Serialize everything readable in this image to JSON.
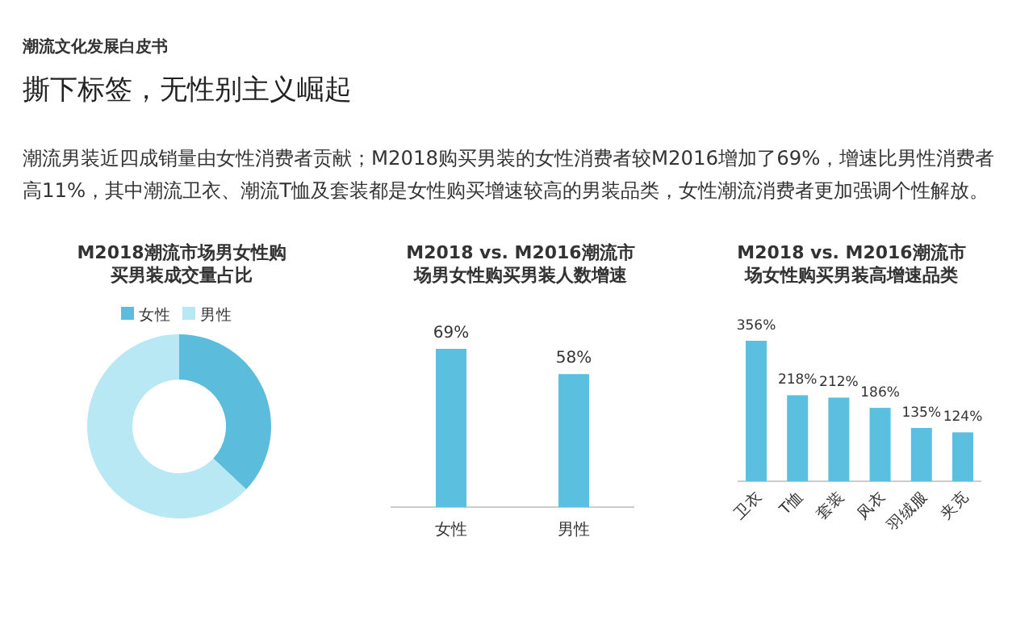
{
  "chart_data": [
    {
      "type": "other",
      "annotations": [
        "潮流文化发展白皮书"
      ],
      "title": "撕下标签，无性别主义崛起",
      "subtitle": "潮流男装近四成销量由女性消费者贡献；M2018购买男装的女性消费者较M2016增加了69%，增速比男性消费者高11%，其中潮流卫衣、潮流T恤及套装都是女性购买增速较高的男装品类，女性潮流消费者更加强调个性解放。"
    },
    {
      "type": "donut",
      "title": "M2018潮流市场男女性购买男装成交量占比",
      "categories": [
        "女性",
        "男性"
      ],
      "values": [
        37,
        63
      ],
      "colors": [
        "#5bbcdc",
        "#b8e8f4"
      ],
      "legend": "top"
    },
    {
      "type": "bar",
      "title": "M2018 vs. M2016潮流市场男女性购买男装人数增速",
      "categories": [
        "女性",
        "男性"
      ],
      "values": [
        69,
        58
      ],
      "value_labels": [
        "69%",
        "58%"
      ],
      "color": "#5bc0e0"
    },
    {
      "type": "bar",
      "title": "M2018 vs. M2016潮流市场女性购买男装高增速品类",
      "categories": [
        "卫衣",
        "T恤",
        "套装",
        "风衣",
        "羽绒服",
        "夹克"
      ],
      "values": [
        356,
        218,
        212,
        186,
        135,
        124
      ],
      "value_labels": [
        "356%",
        "218%",
        "212%",
        "186%",
        "135%",
        "124%"
      ],
      "color": "#5bc0e0"
    }
  ]
}
